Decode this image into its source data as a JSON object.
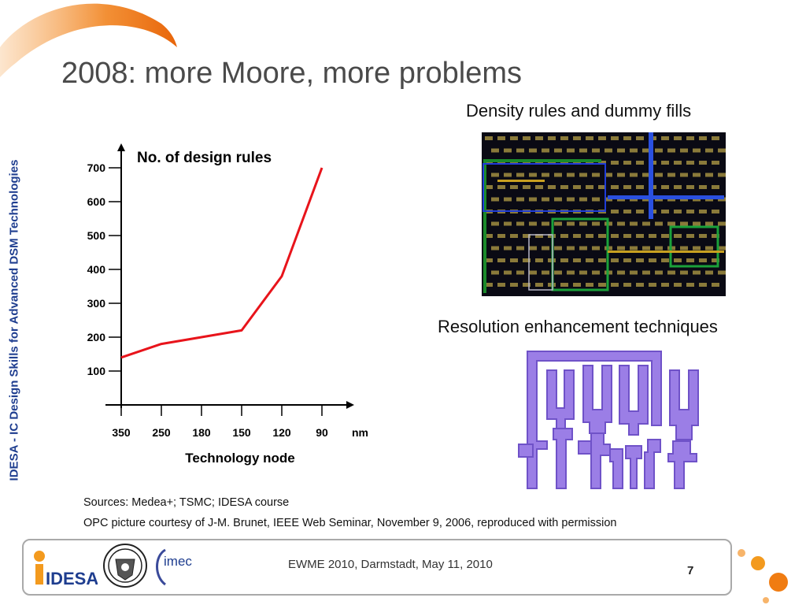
{
  "slide": {
    "title": "2008: more Moore, more problems",
    "side_title": "IDESA - IC Design Skills for Advanced DSM Technologies",
    "caption_density": "Density rules and dummy fills",
    "caption_ret": "Resolution enhancement techniques",
    "sources": "Sources: Medea+; TSMC; IDESA course",
    "opc_credit": "OPC picture courtesy of J-M. Brunet, IEEE Web Seminar, November 9, 2006, reproduced with permission",
    "footer": "EWME 2010, Darmstadt, May 11, 2010",
    "page_number": "7",
    "logos": {
      "idesa_text": "IDESA",
      "imec_text": "imec"
    },
    "colors": {
      "accent_orange": "#f07c12",
      "side_blue": "#1e3d8f",
      "line_red": "#e8141b",
      "opc_purple": "#9b7ee6"
    }
  },
  "chart_data": {
    "type": "line",
    "title": "No. of design rules",
    "xlabel": "Technology node",
    "x_unit": "nm",
    "categories": [
      "350",
      "250",
      "180",
      "150",
      "120",
      "90"
    ],
    "y_ticks": [
      100,
      200,
      300,
      400,
      500,
      600,
      700
    ],
    "ylim": [
      0,
      700
    ],
    "series": [
      {
        "values": [
          140,
          180,
          200,
          220,
          380,
          700
        ]
      }
    ],
    "grid": false
  }
}
